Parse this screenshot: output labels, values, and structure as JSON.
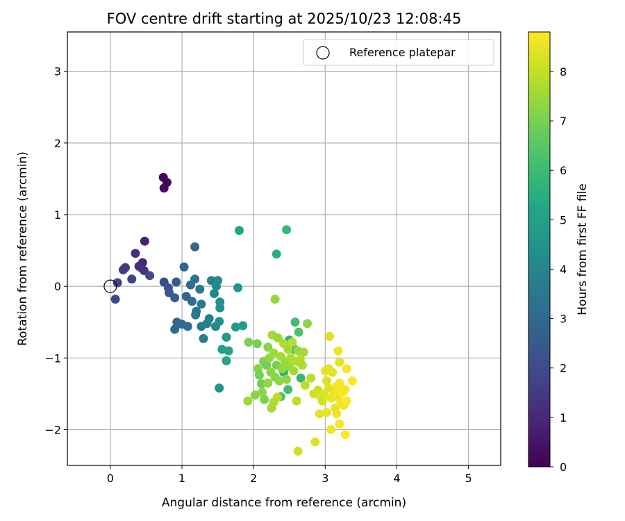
{
  "chart_data": {
    "type": "scatter",
    "title": "FOV centre drift starting at 2025/10/23 12:08:45",
    "xlabel": "Angular distance from reference (arcmin)",
    "ylabel": "Rotation from reference (arcmin)",
    "xlim": [
      -0.6,
      5.45
    ],
    "ylim": [
      -2.5,
      3.55
    ],
    "xticks": [
      0,
      1,
      2,
      3,
      4,
      5
    ],
    "xtick_labels": [
      "0",
      "1",
      "2",
      "3",
      "4",
      "5"
    ],
    "yticks": [
      -2,
      -1,
      0,
      1,
      2,
      3
    ],
    "ytick_labels": [
      "−2",
      "−1",
      "0",
      "1",
      "2",
      "3"
    ],
    "grid": true,
    "legend": {
      "position": "top-right",
      "entries": [
        {
          "label": "Reference platepar",
          "marker": "open-circle"
        }
      ]
    },
    "reference_point": {
      "x": 0,
      "y": 0
    },
    "colorbar": {
      "label": "Hours from first FF file",
      "colormap": "viridis",
      "range": [
        0,
        8.8
      ],
      "ticks": [
        0,
        1,
        2,
        3,
        4,
        5,
        6,
        7,
        8
      ],
      "tick_labels": [
        "0",
        "1",
        "2",
        "3",
        "4",
        "5",
        "6",
        "7",
        "8"
      ]
    },
    "columns": [
      "x",
      "y",
      "hours"
    ],
    "points": [
      [
        0.74,
        1.52,
        0.05
      ],
      [
        0.79,
        1.45,
        0.12
      ],
      [
        0.75,
        1.37,
        0.2
      ],
      [
        0.48,
        0.63,
        0.8
      ],
      [
        0.45,
        0.33,
        1.0
      ],
      [
        0.4,
        0.28,
        1.1
      ],
      [
        0.43,
        0.26,
        1.2
      ],
      [
        0.35,
        0.46,
        1.3
      ],
      [
        0.21,
        0.26,
        1.5
      ],
      [
        0.18,
        0.23,
        1.6
      ],
      [
        0.3,
        0.1,
        1.7
      ],
      [
        0.1,
        0.05,
        1.8
      ],
      [
        0.07,
        -0.18,
        1.9
      ],
      [
        0.47,
        0.22,
        1.4
      ],
      [
        0.55,
        0.15,
        1.9
      ],
      [
        0.75,
        0.06,
        2.0
      ],
      [
        0.81,
        -0.02,
        2.2
      ],
      [
        0.82,
        -0.09,
        2.4
      ],
      [
        0.9,
        -0.16,
        2.6
      ],
      [
        0.92,
        0.06,
        2.5
      ],
      [
        1.03,
        0.27,
        2.8
      ],
      [
        1.18,
        0.55,
        2.9
      ],
      [
        1.06,
        -0.14,
        2.9
      ],
      [
        0.93,
        -0.5,
        2.8
      ],
      [
        0.9,
        -0.6,
        2.9
      ],
      [
        1.0,
        -0.53,
        3.0
      ],
      [
        1.08,
        -0.56,
        3.1
      ],
      [
        1.12,
        0.02,
        3.2
      ],
      [
        1.18,
        0.1,
        3.3
      ],
      [
        1.14,
        -0.21,
        3.2
      ],
      [
        1.2,
        -0.35,
        3.4
      ],
      [
        1.19,
        -0.4,
        3.5
      ],
      [
        1.25,
        -0.04,
        3.5
      ],
      [
        1.27,
        -0.25,
        3.6
      ],
      [
        1.27,
        -0.56,
        3.6
      ],
      [
        1.3,
        -0.73,
        3.7
      ],
      [
        1.35,
        -0.52,
        3.8
      ],
      [
        1.38,
        -0.45,
        3.9
      ],
      [
        1.41,
        0.08,
        3.9
      ],
      [
        1.45,
        -0.1,
        4.0
      ],
      [
        1.47,
        -0.56,
        4.1
      ],
      [
        1.5,
        0.08,
        4.1
      ],
      [
        1.48,
        0.0,
        4.2
      ],
      [
        1.52,
        -0.49,
        4.3
      ],
      [
        1.53,
        -0.22,
        4.4
      ],
      [
        1.53,
        -0.3,
        4.4
      ],
      [
        1.52,
        -1.42,
        4.5
      ],
      [
        1.78,
        -0.02,
        4.6
      ],
      [
        1.8,
        0.78,
        5.2
      ],
      [
        1.62,
        -0.71,
        4.7
      ],
      [
        1.75,
        -0.57,
        4.8
      ],
      [
        1.85,
        -0.55,
        4.9
      ],
      [
        1.56,
        -0.88,
        5.0
      ],
      [
        1.65,
        -0.9,
        5.1
      ],
      [
        1.62,
        -1.04,
        5.2
      ],
      [
        2.32,
        0.45,
        5.5
      ],
      [
        2.46,
        0.79,
        5.9
      ],
      [
        2.58,
        -0.5,
        6.0
      ],
      [
        2.5,
        -0.75,
        5.6
      ],
      [
        2.57,
        -0.88,
        6.1
      ],
      [
        2.63,
        -0.64,
        6.3
      ],
      [
        2.66,
        -1.28,
        5.8
      ],
      [
        2.42,
        -1.2,
        5.7
      ],
      [
        2.48,
        -1.44,
        6.1
      ],
      [
        2.38,
        -1.54,
        6.3
      ],
      [
        2.3,
        -0.18,
        7.4
      ],
      [
        2.75,
        -0.52,
        7.3
      ],
      [
        1.93,
        -0.78,
        7.1
      ],
      [
        2.05,
        -0.8,
        7.0
      ],
      [
        2.06,
        -1.15,
        7.2
      ],
      [
        2.08,
        -1.24,
        7.0
      ],
      [
        2.11,
        -1.36,
        6.9
      ],
      [
        2.14,
        -1.05,
        7.1
      ],
      [
        2.18,
        -1.1,
        6.9
      ],
      [
        2.2,
        -0.85,
        7.2
      ],
      [
        2.22,
        -1.0,
        7.4
      ],
      [
        2.24,
        -1.2,
        7.3
      ],
      [
        2.26,
        -0.68,
        7.6
      ],
      [
        2.28,
        -0.93,
        7.5
      ],
      [
        2.3,
        -1.27,
        7.2
      ],
      [
        2.32,
        -1.1,
        7.0
      ],
      [
        2.34,
        -0.72,
        7.5
      ],
      [
        2.36,
        -1.32,
        7.3
      ],
      [
        2.38,
        -0.98,
        7.6
      ],
      [
        2.4,
        -1.15,
        7.4
      ],
      [
        2.42,
        -0.8,
        7.7
      ],
      [
        2.44,
        -1.05,
        7.5
      ],
      [
        2.46,
        -1.3,
        7.3
      ],
      [
        2.48,
        -0.88,
        7.6
      ],
      [
        2.5,
        -1.12,
        7.5
      ],
      [
        2.52,
        -1.0,
        7.7
      ],
      [
        2.54,
        -0.78,
        7.8
      ],
      [
        2.56,
        -1.18,
        7.6
      ],
      [
        2.6,
        -1.05,
        7.8
      ],
      [
        2.62,
        -0.9,
        7.5
      ],
      [
        2.65,
        -1.02,
        7.8
      ],
      [
        2.68,
        -1.1,
        7.7
      ],
      [
        2.7,
        -0.92,
        7.6
      ],
      [
        2.72,
        -1.38,
        7.9
      ],
      [
        2.8,
        -1.28,
        7.9
      ],
      [
        2.12,
        -1.48,
        7.3
      ],
      [
        2.15,
        -1.58,
        7.1
      ],
      [
        2.2,
        -1.35,
        7.4
      ],
      [
        2.25,
        -1.7,
        7.6
      ],
      [
        2.28,
        -1.62,
        7.7
      ],
      [
        2.33,
        -1.55,
        7.9
      ],
      [
        2.6,
        -1.6,
        7.9
      ],
      [
        2.02,
        -1.52,
        7.2
      ],
      [
        1.92,
        -1.6,
        7.5
      ],
      [
        2.9,
        -1.45,
        8.1
      ],
      [
        2.84,
        -1.5,
        8.2
      ],
      [
        2.94,
        -1.55,
        8.3
      ],
      [
        2.96,
        -1.6,
        8.2
      ],
      [
        2.92,
        -1.78,
        8.4
      ],
      [
        3.02,
        -1.32,
        8.3
      ],
      [
        3.05,
        -1.42,
        8.4
      ],
      [
        3.08,
        -1.56,
        8.5
      ],
      [
        3.1,
        -1.2,
        8.4
      ],
      [
        3.12,
        -1.5,
        8.6
      ],
      [
        3.14,
        -1.7,
        8.5
      ],
      [
        3.16,
        -1.4,
        8.7
      ],
      [
        3.18,
        -1.55,
        8.6
      ],
      [
        3.2,
        -1.35,
        8.7
      ],
      [
        3.22,
        -1.62,
        8.7
      ],
      [
        3.24,
        -1.48,
        8.8
      ],
      [
        3.26,
        -1.66,
        8.6
      ],
      [
        3.28,
        -1.44,
        8.7
      ],
      [
        3.3,
        -1.6,
        8.8
      ],
      [
        3.0,
        -1.18,
        8.5
      ],
      [
        3.05,
        -1.15,
        8.4
      ],
      [
        3.2,
        -1.06,
        8.5
      ],
      [
        3.18,
        -0.9,
        8.6
      ],
      [
        3.3,
        -1.15,
        8.7
      ],
      [
        3.38,
        -1.32,
        8.8
      ],
      [
        3.06,
        -0.7,
        8.4
      ],
      [
        3.02,
        -1.76,
        8.5
      ],
      [
        3.08,
        -2.0,
        8.6
      ],
      [
        3.2,
        -1.92,
        8.7
      ],
      [
        3.28,
        -2.07,
        8.8
      ],
      [
        2.86,
        -2.17,
        8.3
      ],
      [
        2.62,
        -2.3,
        8.2
      ],
      [
        3.16,
        -1.78,
        8.6
      ],
      [
        2.98,
        -1.5,
        8.4
      ]
    ]
  }
}
